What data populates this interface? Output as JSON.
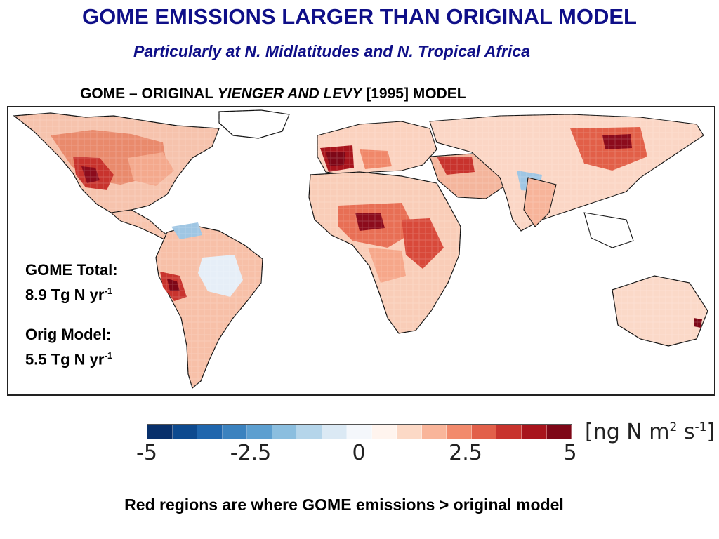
{
  "slide": {
    "title": "GOME EMISSIONS LARGER THAN ORIGINAL MODEL",
    "subtitle": "Particularly at N. Midlatitudes and N. Tropical Africa",
    "caption": "Red regions are where GOME emissions > original model"
  },
  "map": {
    "title_prefix": "GOME – ORIGINAL ",
    "title_italic": "YIENGER AND LEVY",
    "title_suffix": " [1995] MODEL"
  },
  "stats": {
    "gome_label": "GOME Total:",
    "gome_value": "8.9 Tg N yr",
    "gome_exp": "-1",
    "model_label": "Orig Model:",
    "model_value": "5.5 Tg N yr",
    "model_exp": "-1"
  },
  "colorbar": {
    "ticks": [
      "-5",
      "-2.5",
      "0",
      "2.5",
      "5"
    ],
    "unit_prefix": "[ng N m",
    "unit_exp1": "2",
    "unit_mid": " s",
    "unit_exp2": "-1",
    "unit_suffix": "]",
    "colors": [
      "#08306b",
      "#0d4a8f",
      "#1f66ad",
      "#3b82bf",
      "#5d9fd0",
      "#8bbedf",
      "#b5d5ea",
      "#dbe9f4",
      "#f4f7fb",
      "#fff4ee",
      "#fcd9c6",
      "#f9b59a",
      "#f28a6c",
      "#e2604a",
      "#c8332d",
      "#a8141c",
      "#7e0717"
    ]
  }
}
